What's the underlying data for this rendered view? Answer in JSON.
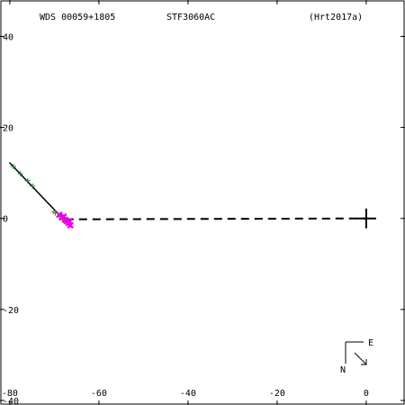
{
  "header": {
    "wds_id": "WDS 00059+1805",
    "discoverer": "STF3060AC",
    "reference": "(Hrt2017a)"
  },
  "compass": {
    "north": "N",
    "east": "E"
  },
  "chart_data": {
    "type": "scatter",
    "title": "",
    "xlabel": "",
    "ylabel": "",
    "xlim": [
      -82,
      8.5
    ],
    "ylim": [
      -40.8,
      47.8
    ],
    "x_ticks": [
      -80,
      -60,
      -40,
      -20,
      0
    ],
    "y_ticks": [
      40,
      20,
      0,
      -20,
      -40
    ],
    "x_tick_labels": [
      "-80",
      "-60",
      "-40",
      "-20",
      "0"
    ],
    "y_tick_labels": [
      "40",
      "20",
      "0",
      "-20",
      "-40"
    ],
    "primary_star": [
      0,
      0
    ],
    "orbit_fit_line": [
      [
        -80.1,
        12.3
      ],
      [
        -66.3,
        -1.9
      ]
    ],
    "projection_line": [
      [
        -67.5,
        -0.2
      ],
      [
        0,
        0
      ]
    ],
    "series": [
      {
        "marker": "plus",
        "color": "#2e7d32",
        "points": [
          [
            -79.2,
            11.4
          ],
          [
            -77.6,
            9.8
          ],
          [
            -76.0,
            8.3
          ],
          [
            -74.9,
            7.1
          ],
          [
            -69.8,
            1.2
          ],
          [
            -68.9,
            0.5
          ]
        ]
      },
      {
        "marker": "plus",
        "color": "#9a9a00",
        "points": [
          [
            -70.2,
            1.5
          ],
          [
            -68.2,
            -0.3
          ]
        ]
      },
      {
        "marker": "cross",
        "color": "#e600e6",
        "points": [
          [
            -68.9,
            0.8
          ],
          [
            -68.3,
            0.2
          ],
          [
            -67.9,
            0.4
          ],
          [
            -67.6,
            -0.3
          ],
          [
            -67.2,
            -0.6
          ],
          [
            -66.8,
            -1.0
          ],
          [
            -66.4,
            -1.5
          ],
          [
            -66.7,
            -0.6
          ]
        ]
      }
    ]
  }
}
